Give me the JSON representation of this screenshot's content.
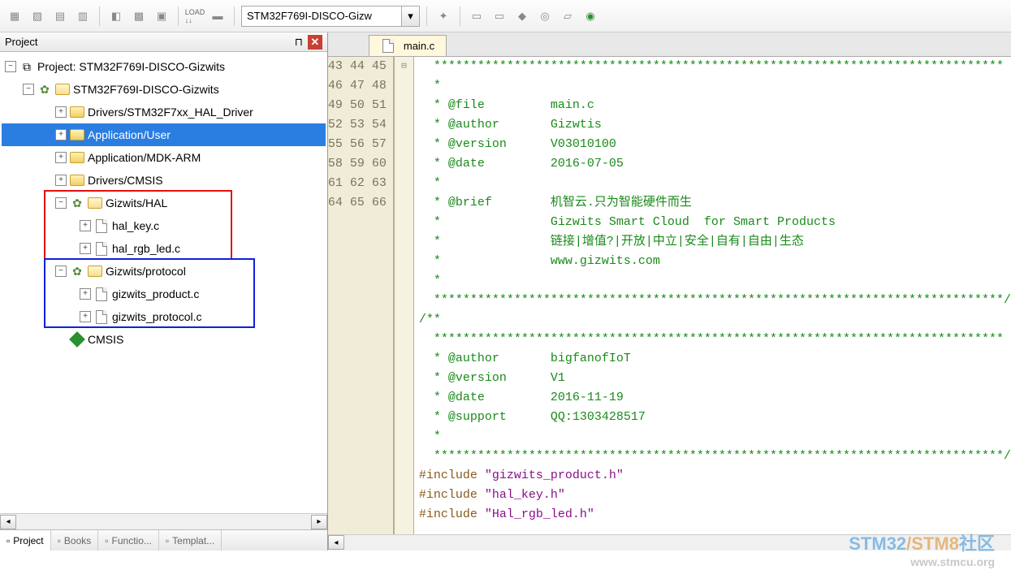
{
  "toolbar": {
    "combo_value": "STM32F769I-DISCO-Gizw",
    "icons": [
      "cube",
      "cube-wire",
      "grid",
      "grid-x",
      "layers",
      "grid2",
      "grid3",
      "sep",
      "load",
      "save",
      "sep",
      "combo",
      "sep",
      "wand",
      "sep",
      "stack",
      "downstack",
      "diamond",
      "target",
      "sheet",
      "globe"
    ]
  },
  "panel": {
    "title": "Project"
  },
  "tree": {
    "root_label": "Project: STM32F769I-DISCO-Gizwits",
    "target_label": "STM32F769I-DISCO-Gizwits",
    "items": [
      {
        "label": "Drivers/STM32F7xx_HAL_Driver",
        "exp": "+",
        "sel": false
      },
      {
        "label": "Application/User",
        "exp": "+",
        "sel": true
      },
      {
        "label": "Application/MDK-ARM",
        "exp": "+",
        "sel": false
      },
      {
        "label": "Drivers/CMSIS",
        "exp": "+",
        "sel": false
      }
    ],
    "hal_group": {
      "label": "Gizwits/HAL",
      "files": [
        "hal_key.c",
        "hal_rgb_led.c"
      ],
      "box_color": "#e01010"
    },
    "proto_group": {
      "label": "Gizwits/protocol",
      "files": [
        "gizwits_product.c",
        "gizwits_protocol.c"
      ],
      "box_color": "#1020e0"
    },
    "cmsis_label": "CMSIS"
  },
  "bottom_tabs": [
    {
      "label": "Project",
      "active": true
    },
    {
      "label": "Books",
      "active": false
    },
    {
      "label": "Functio...",
      "active": false
    },
    {
      "label": "Templat...",
      "active": false
    }
  ],
  "editor": {
    "tab_label": "main.c",
    "first_line": 43,
    "lines": [
      {
        "type": "comment",
        "text": "  ******************************************************************************"
      },
      {
        "type": "comment",
        "text": "  *"
      },
      {
        "type": "comment",
        "text": "  * @file         main.c"
      },
      {
        "type": "comment",
        "text": "  * @author       Gizwtis"
      },
      {
        "type": "comment",
        "text": "  * @version      V03010100"
      },
      {
        "type": "comment",
        "text": "  * @date         2016-07-05"
      },
      {
        "type": "comment",
        "text": "  *"
      },
      {
        "type": "comment",
        "text": "  * @brief        机智云.只为智能硬件而生"
      },
      {
        "type": "comment",
        "text": "  *               Gizwits Smart Cloud  for Smart Products"
      },
      {
        "type": "comment",
        "text": "  *               链接|增值?|开放|中立|安全|自有|自由|生态"
      },
      {
        "type": "comment",
        "text": "  *               www.gizwits.com"
      },
      {
        "type": "comment",
        "text": "  *"
      },
      {
        "type": "comment",
        "text": "  ******************************************************************************/"
      },
      {
        "type": "comment",
        "text": "/**",
        "fold": true
      },
      {
        "type": "comment",
        "text": "  ******************************************************************************"
      },
      {
        "type": "comment",
        "text": "  * @author       bigfanofIoT"
      },
      {
        "type": "comment",
        "text": "  * @version      V1"
      },
      {
        "type": "comment",
        "text": "  * @date         2016-11-19"
      },
      {
        "type": "comment",
        "text": "  * @support      QQ:1303428517"
      },
      {
        "type": "comment",
        "text": "  *"
      },
      {
        "type": "comment",
        "text": "  ******************************************************************************/"
      },
      {
        "type": "include",
        "pp": "#include ",
        "str": "\"gizwits_product.h\""
      },
      {
        "type": "include",
        "pp": "#include ",
        "str": "\"hal_key.h\""
      },
      {
        "type": "include",
        "pp": "#include ",
        "str": "\"Hal_rgb_led.h\""
      }
    ]
  },
  "watermark": {
    "line1a": "STM32",
    "line1b": "/",
    "line1c": "STM8",
    "line1d": "社区",
    "line2": "www.stmcu.org"
  }
}
